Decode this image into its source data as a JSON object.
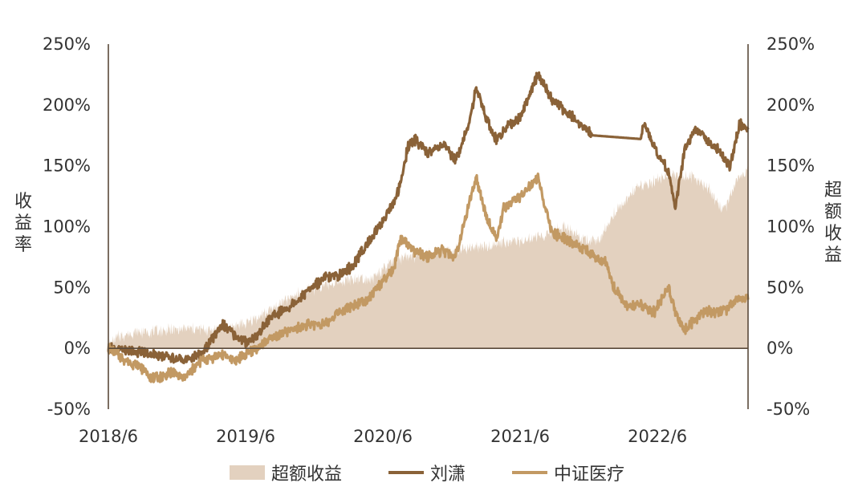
{
  "chart_data": {
    "type": "line",
    "title": "",
    "xlabel": "",
    "ylabel_left": "收益率",
    "ylabel_right": "超额收益",
    "x_ticks": [
      "2018/6",
      "2019/6",
      "2020/6",
      "2021/6",
      "2022/6"
    ],
    "x_range": [
      2018.42,
      2023.08
    ],
    "x_tick_positions": [
      2018.42,
      2019.42,
      2020.42,
      2021.42,
      2022.42
    ],
    "y_ticks_left": [
      "250%",
      "200%",
      "150%",
      "100%",
      "50%",
      "0%",
      "-50%"
    ],
    "y_ticks_right": [
      "250%",
      "200%",
      "150%",
      "100%",
      "50%",
      "0%",
      "-50%"
    ],
    "ylim": [
      -50,
      250
    ],
    "legend_position": "bottom",
    "legend": [
      "超额收益",
      "刘潇",
      "中证医疗"
    ],
    "series": [
      {
        "name": "超额收益",
        "kind": "area",
        "color": "#e3d1bf",
        "x": [
          2018.42,
          2018.5,
          2018.6,
          2018.75,
          2018.9,
          2019.0,
          2019.15,
          2019.3,
          2019.42,
          2019.5,
          2019.65,
          2019.8,
          2020.0,
          2020.2,
          2020.35,
          2020.5,
          2020.7,
          2020.9,
          2021.1,
          2021.3,
          2021.42,
          2021.6,
          2021.75,
          2021.9,
          2022.0,
          2022.1,
          2022.25,
          2022.4,
          2022.55,
          2022.7,
          2022.8,
          2022.9,
          2023.0,
          2023.08
        ],
        "values": [
          2,
          10,
          13,
          14,
          15,
          16,
          15,
          18,
          20,
          25,
          35,
          45,
          52,
          57,
          58,
          72,
          77,
          80,
          83,
          87,
          88,
          93,
          100,
          88,
          90,
          110,
          130,
          138,
          143,
          140,
          130,
          112,
          138,
          145
        ]
      },
      {
        "name": "刘潇",
        "kind": "line",
        "color": "#8a6238",
        "x": [
          2018.42,
          2018.55,
          2018.65,
          2018.75,
          2018.9,
          2018.97,
          2019.1,
          2019.25,
          2019.35,
          2019.42,
          2019.5,
          2019.6,
          2019.75,
          2019.9,
          2020.0,
          2020.1,
          2020.2,
          2020.3,
          2020.42,
          2020.5,
          2020.55,
          2020.6,
          2020.65,
          2020.75,
          2020.85,
          2020.95,
          2021.05,
          2021.1,
          2021.17,
          2021.25,
          2021.3,
          2021.42,
          2021.55,
          2021.65,
          2021.75,
          2021.95,
          2022.3,
          2022.32,
          2022.4,
          2022.5,
          2022.55,
          2022.62,
          2022.7,
          2022.85,
          2022.95,
          2023.02,
          2023.08
        ],
        "values": [
          0,
          -2,
          -3,
          -5,
          -8,
          -10,
          -5,
          20,
          10,
          5,
          10,
          25,
          35,
          50,
          58,
          60,
          68,
          85,
          105,
          120,
          135,
          165,
          172,
          160,
          168,
          155,
          185,
          215,
          190,
          170,
          180,
          190,
          225,
          205,
          195,
          175,
          172,
          185,
          165,
          145,
          115,
          165,
          180,
          165,
          150,
          185,
          180
        ]
      },
      {
        "name": "中证医疗",
        "kind": "line",
        "color": "#c29963",
        "x": [
          2018.42,
          2018.55,
          2018.65,
          2018.75,
          2018.9,
          2018.97,
          2019.1,
          2019.25,
          2019.35,
          2019.42,
          2019.5,
          2019.6,
          2019.75,
          2019.9,
          2020.0,
          2020.1,
          2020.2,
          2020.3,
          2020.42,
          2020.5,
          2020.55,
          2020.6,
          2020.65,
          2020.75,
          2020.85,
          2020.95,
          2021.05,
          2021.1,
          2021.17,
          2021.25,
          2021.3,
          2021.42,
          2021.55,
          2021.65,
          2021.75,
          2021.9,
          2022.05,
          2022.1,
          2022.2,
          2022.3,
          2022.4,
          2022.5,
          2022.55,
          2022.62,
          2022.75,
          2022.9,
          2023.0,
          2023.08
        ],
        "values": [
          0,
          -10,
          -15,
          -25,
          -20,
          -25,
          -10,
          -5,
          -10,
          -5,
          0,
          8,
          15,
          20,
          20,
          30,
          35,
          40,
          55,
          65,
          90,
          85,
          80,
          75,
          80,
          75,
          120,
          140,
          110,
          90,
          115,
          125,
          140,
          95,
          90,
          80,
          70,
          50,
          35,
          35,
          30,
          50,
          30,
          15,
          30,
          30,
          40,
          40
        ]
      }
    ]
  }
}
